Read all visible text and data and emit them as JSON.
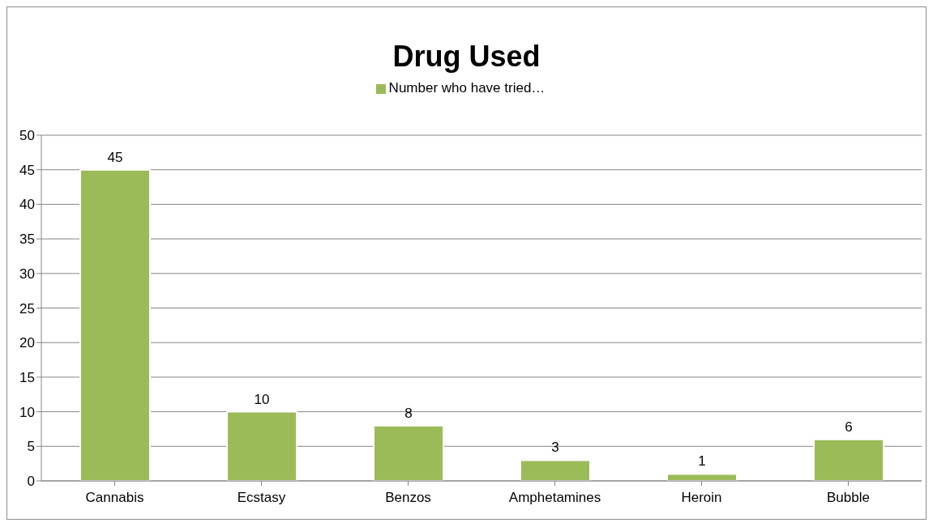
{
  "chart_data": {
    "type": "bar",
    "title": "Drug Used",
    "categories": [
      "Cannabis",
      "Ecstasy",
      "Benzos",
      "Amphetamines",
      "Heroin",
      "Bubble"
    ],
    "series": [
      {
        "name": "Number who have tried…",
        "color": "#9bbb59",
        "values": [
          45,
          10,
          8,
          3,
          1,
          6
        ]
      }
    ],
    "ylim": [
      0,
      50
    ],
    "yticks": [
      0,
      5,
      10,
      15,
      20,
      25,
      30,
      35,
      40,
      45,
      50
    ],
    "grid": "y",
    "legend": "top",
    "data_labels": true
  }
}
